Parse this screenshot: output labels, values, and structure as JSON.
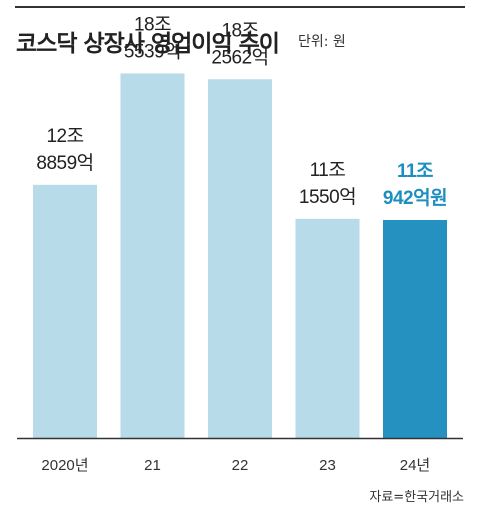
{
  "header": {
    "title": "코스닥 상장사 영업이익 추이",
    "unit": "단위: 원"
  },
  "source": "자료=한국거래소",
  "colors": {
    "bar": "#b7dbe9",
    "bar_highlight": "#2591c0",
    "label_highlight": "#1c8fc0"
  },
  "chart_data": {
    "type": "bar",
    "title": "코스닥 상장사 영업이익 추이",
    "categories": [
      "2020년",
      "21",
      "22",
      "23",
      "24년"
    ],
    "values": [
      128859,
      185539,
      182562,
      111550,
      110942
    ],
    "value_unit": "억원",
    "data_labels": [
      [
        "12조",
        "8859억"
      ],
      [
        "18조",
        "5539억"
      ],
      [
        "18조",
        "2562억"
      ],
      [
        "11조",
        "1550억"
      ],
      [
        "11조",
        "942억원"
      ]
    ],
    "highlight_index": 4,
    "ylim": [
      0,
      200000
    ],
    "grid": false,
    "xlabel": "",
    "ylabel": ""
  }
}
